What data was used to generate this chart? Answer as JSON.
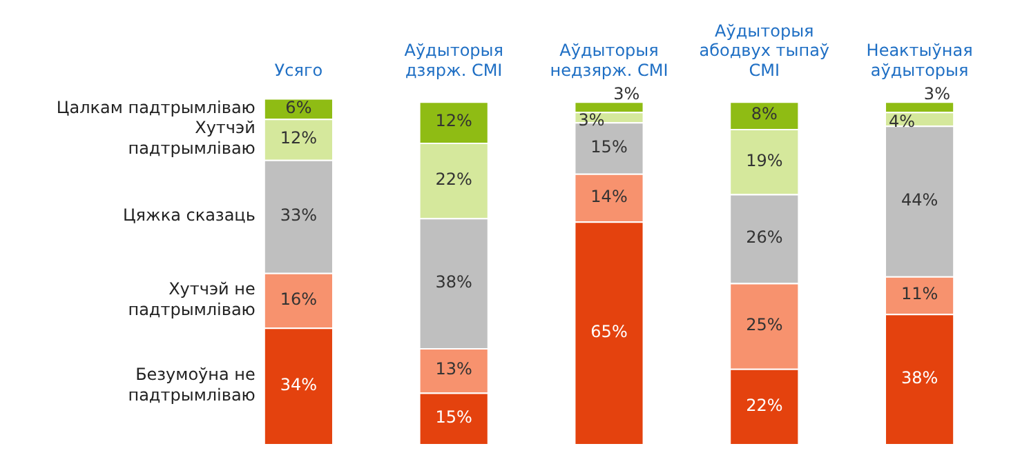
{
  "chart_data": {
    "type": "bar",
    "stacked": true,
    "categories": [
      "Усяго",
      "Аўдыторыя дзярж. СМІ",
      "Аўдыторыя недзярж. СМІ",
      "Аўдыторыя абодвух тыпаў СМІ",
      "Неактыўная аўдыторыя"
    ],
    "series": [
      {
        "name": "Безумоўна не падтрымліваю",
        "color": "#e4420e",
        "values": [
          34,
          15,
          65,
          22,
          38
        ],
        "value_labels": [
          "34%",
          "15%",
          "65%",
          "22%",
          "38%"
        ]
      },
      {
        "name": "Хутчэй не падтрымліваю",
        "color": "#f7926e",
        "values": [
          16,
          13,
          14,
          25,
          11
        ],
        "value_labels": [
          "16%",
          "13%",
          "14%",
          "25%",
          "11%"
        ]
      },
      {
        "name": "Цяжка сказаць",
        "color": "#bfbfbf",
        "values": [
          33,
          38,
          15,
          26,
          44
        ],
        "value_labels": [
          "33%",
          "38%",
          "15%",
          "26%",
          "44%"
        ]
      },
      {
        "name": "Хутчэй падтрымліваю",
        "color": "#d5e89c",
        "values": [
          12,
          22,
          3,
          19,
          4
        ],
        "value_labels": [
          "12%",
          "22%",
          "3%",
          "19%",
          "4%"
        ]
      },
      {
        "name": "Цалкам падтрымліваю",
        "color": "#8fbc14",
        "values": [
          6,
          12,
          3,
          8,
          3
        ],
        "value_labels": [
          "6%",
          "12%",
          "3%",
          "8%",
          "3%"
        ]
      }
    ],
    "legend": false,
    "grid": false,
    "tick_labels": "x"
  }
}
